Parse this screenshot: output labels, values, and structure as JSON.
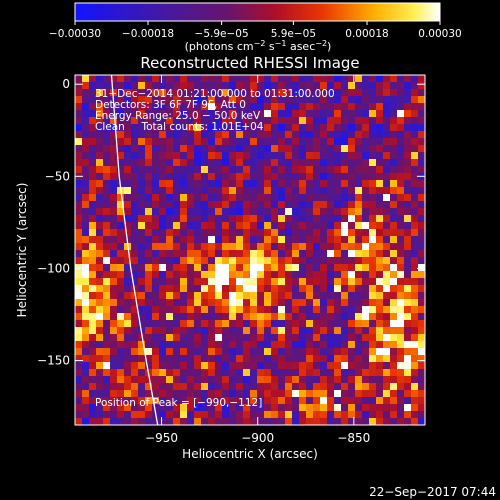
{
  "chart_data": {
    "type": "heatmap",
    "title": "Reconstructed RHESSI Image",
    "xlabel": "Heliocentric X (arcsec)",
    "ylabel": "Heliocentric Y (arcsec)",
    "xlim": [
      -995,
      -813
    ],
    "ylim": [
      -185,
      5
    ],
    "x_ticks": [
      {
        "value": -950,
        "label": "−950"
      },
      {
        "value": -900,
        "label": "−900"
      },
      {
        "value": -850,
        "label": "−850"
      }
    ],
    "y_ticks": [
      {
        "value": 0,
        "label": "0"
      },
      {
        "value": -50,
        "label": "−50"
      },
      {
        "value": -100,
        "label": "−100"
      },
      {
        "value": -150,
        "label": "−150"
      }
    ],
    "colorbar": {
      "min": -0.0003,
      "max": 0.0003,
      "ticks": [
        {
          "value": -0.0003,
          "label": "−0.00030"
        },
        {
          "value": -0.00018,
          "label": "−0.00018"
        },
        {
          "value": -5.9e-05,
          "label": "−5.9e−05"
        },
        {
          "value": 5.9e-05,
          "label": "5.9e−05"
        },
        {
          "value": 0.00018,
          "label": "0.00018"
        },
        {
          "value": 0.0003,
          "label": "0.00030"
        }
      ],
      "units_prefix": "(photons cm",
      "units_exp1": "−2",
      "units_mid": " s",
      "units_exp2": "−1",
      "units_mid2": " asec",
      "units_exp3": "−2",
      "units_suffix": ")"
    },
    "annotations": {
      "time_range": "31−Dec−2014 01:21:00.000 to 01:31:00.000",
      "detectors": "Detectors: 3F 6F 7F 9F, Att 0",
      "energy_range": "Energy Range: 25.0 − 50.0 keV",
      "clean_counts": "Clean     Total counts: 1.01E+04",
      "peak": "Position of Peak = [−990,−112]"
    },
    "sources": [
      {
        "x": -910,
        "y": -108,
        "amp": 1.0,
        "sx": 20,
        "sy": 14
      },
      {
        "x": -991,
        "y": -115,
        "amp": 1.0,
        "sx": 12,
        "sy": 20
      },
      {
        "x": -828,
        "y": -135,
        "amp": 0.85,
        "sx": 12,
        "sy": 28
      },
      {
        "x": -845,
        "y": -85,
        "amp": 0.55,
        "sx": 10,
        "sy": 18
      },
      {
        "x": -960,
        "y": -160,
        "amp": 0.5,
        "sx": 12,
        "sy": 12
      },
      {
        "x": -870,
        "y": -170,
        "amp": 0.45,
        "sx": 18,
        "sy": 10
      }
    ],
    "limb": [
      {
        "x": -976,
        "y": 5
      },
      {
        "x": -972,
        "y": -50
      },
      {
        "x": -966,
        "y": -100
      },
      {
        "x": -958,
        "y": -150
      },
      {
        "x": -952,
        "y": -185
      }
    ]
  },
  "footer": {
    "timestamp": "22−Sep−2017 07:44"
  },
  "colors": {
    "background": "#000000",
    "limb_line": "#ffffff"
  }
}
